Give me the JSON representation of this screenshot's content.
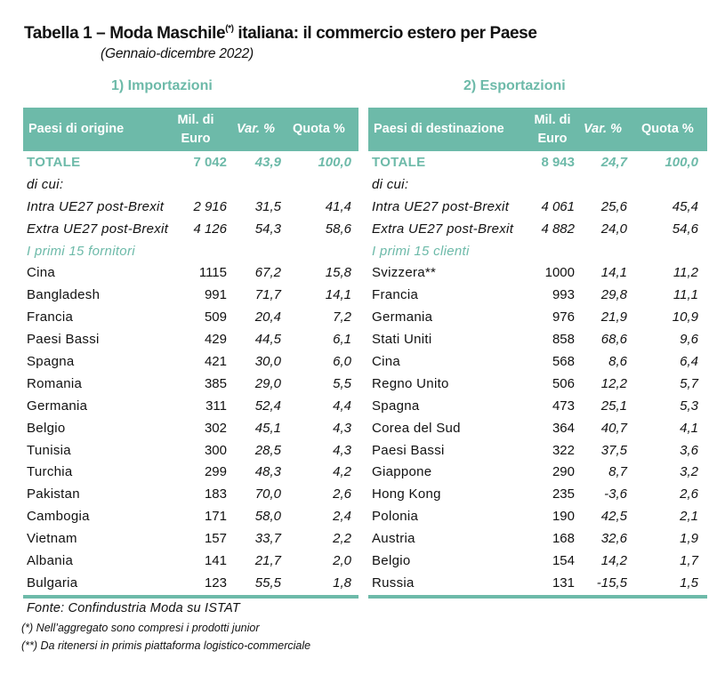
{
  "header": {
    "title_main": "Tabella 1 – Moda Maschile",
    "title_sup": "(*)",
    "title_rest": " italiana: il commercio estero per Paese",
    "subtitle": "(Gennaio-dicembre 2022)"
  },
  "imports": {
    "section_title": "1) Importazioni",
    "columns": {
      "country": "Paesi di origine",
      "mil_line1": "Mil. di",
      "mil_line2": "Euro",
      "var": "Var. %",
      "quota": "Quota %"
    },
    "total": {
      "label": "TOTALE",
      "mil": "7 042",
      "var": "43,9",
      "quota": "100,0"
    },
    "di_cui": "di cui:",
    "intra": {
      "label": "Intra UE27 post-Brexit",
      "mil": "2 916",
      "var": "31,5",
      "quota": "41,4"
    },
    "extra": {
      "label": "Extra UE27 post-Brexit",
      "mil": "4 126",
      "var": "54,3",
      "quota": "58,6"
    },
    "top_label": "I primi 15 fornitori",
    "rows": [
      {
        "country": "Cina",
        "mil": "1115",
        "var": "67,2",
        "quota": "15,8"
      },
      {
        "country": "Bangladesh",
        "mil": "991",
        "var": "71,7",
        "quota": "14,1"
      },
      {
        "country": "Francia",
        "mil": "509",
        "var": "20,4",
        "quota": "7,2"
      },
      {
        "country": "Paesi Bassi",
        "mil": "429",
        "var": "44,5",
        "quota": "6,1"
      },
      {
        "country": "Spagna",
        "mil": "421",
        "var": "30,0",
        "quota": "6,0"
      },
      {
        "country": "Romania",
        "mil": "385",
        "var": "29,0",
        "quota": "5,5"
      },
      {
        "country": "Germania",
        "mil": "311",
        "var": "52,4",
        "quota": "4,4"
      },
      {
        "country": "Belgio",
        "mil": "302",
        "var": "45,1",
        "quota": "4,3"
      },
      {
        "country": "Tunisia",
        "mil": "300",
        "var": "28,5",
        "quota": "4,3"
      },
      {
        "country": "Turchia",
        "mil": "299",
        "var": "48,3",
        "quota": "4,2"
      },
      {
        "country": "Pakistan",
        "mil": "183",
        "var": "70,0",
        "quota": "2,6"
      },
      {
        "country": "Cambogia",
        "mil": "171",
        "var": "58,0",
        "quota": "2,4"
      },
      {
        "country": "Vietnam",
        "mil": "157",
        "var": "33,7",
        "quota": "2,2"
      },
      {
        "country": "Albania",
        "mil": "141",
        "var": "21,7",
        "quota": "2,0"
      },
      {
        "country": "Bulgaria",
        "mil": "123",
        "var": "55,5",
        "quota": "1,8"
      }
    ]
  },
  "exports": {
    "section_title": "2) Esportazioni",
    "columns": {
      "country": "Paesi di destinazione",
      "mil_line1": "Mil. di",
      "mil_line2": "Euro",
      "var": "Var. %",
      "quota": "Quota %"
    },
    "total": {
      "label": "TOTALE",
      "mil": "8 943",
      "var": "24,7",
      "quota": "100,0"
    },
    "di_cui": "di cui:",
    "intra": {
      "label": "Intra UE27 post-Brexit",
      "mil": "4 061",
      "var": "25,6",
      "quota": "45,4"
    },
    "extra": {
      "label": "Extra UE27 post-Brexit",
      "mil": "4 882",
      "var": "24,0",
      "quota": "54,6"
    },
    "top_label": "I primi 15 clienti",
    "rows": [
      {
        "country": "Svizzera**",
        "mil": "1000",
        "var": "14,1",
        "quota": "11,2"
      },
      {
        "country": "Francia",
        "mil": "993",
        "var": "29,8",
        "quota": "11,1"
      },
      {
        "country": "Germania",
        "mil": "976",
        "var": "21,9",
        "quota": "10,9"
      },
      {
        "country": "Stati Uniti",
        "mil": "858",
        "var": "68,6",
        "quota": "9,6"
      },
      {
        "country": "Cina",
        "mil": "568",
        "var": "8,6",
        "quota": "6,4"
      },
      {
        "country": "Regno Unito",
        "mil": "506",
        "var": "12,2",
        "quota": "5,7"
      },
      {
        "country": "Spagna",
        "mil": "473",
        "var": "25,1",
        "quota": "5,3"
      },
      {
        "country": "Corea del Sud",
        "mil": "364",
        "var": "40,7",
        "quota": "4,1"
      },
      {
        "country": "Paesi Bassi",
        "mil": "322",
        "var": "37,5",
        "quota": "3,6"
      },
      {
        "country": "Giappone",
        "mil": "290",
        "var": "8,7",
        "quota": "3,2"
      },
      {
        "country": "Hong Kong",
        "mil": "235",
        "var": "-3,6",
        "quota": "2,6"
      },
      {
        "country": "Polonia",
        "mil": "190",
        "var": "42,5",
        "quota": "2,1"
      },
      {
        "country": "Austria",
        "mil": "168",
        "var": "32,6",
        "quota": "1,9"
      },
      {
        "country": "Belgio",
        "mil": "154",
        "var": "14,2",
        "quota": "1,7"
      },
      {
        "country": "Russia",
        "mil": "131",
        "var": "-15,5",
        "quota": "1,5"
      }
    ]
  },
  "footer": {
    "source": "Fonte:  Confindustria Moda su ISTAT",
    "note1": "(*) Nell’aggregato sono compresi i prodotti junior",
    "note2": "(**) Da ritenersi in primis piattaforma logistico-commerciale"
  },
  "colors": {
    "accent": "#6dbaa9",
    "text": "#111111",
    "background": "#ffffff"
  }
}
